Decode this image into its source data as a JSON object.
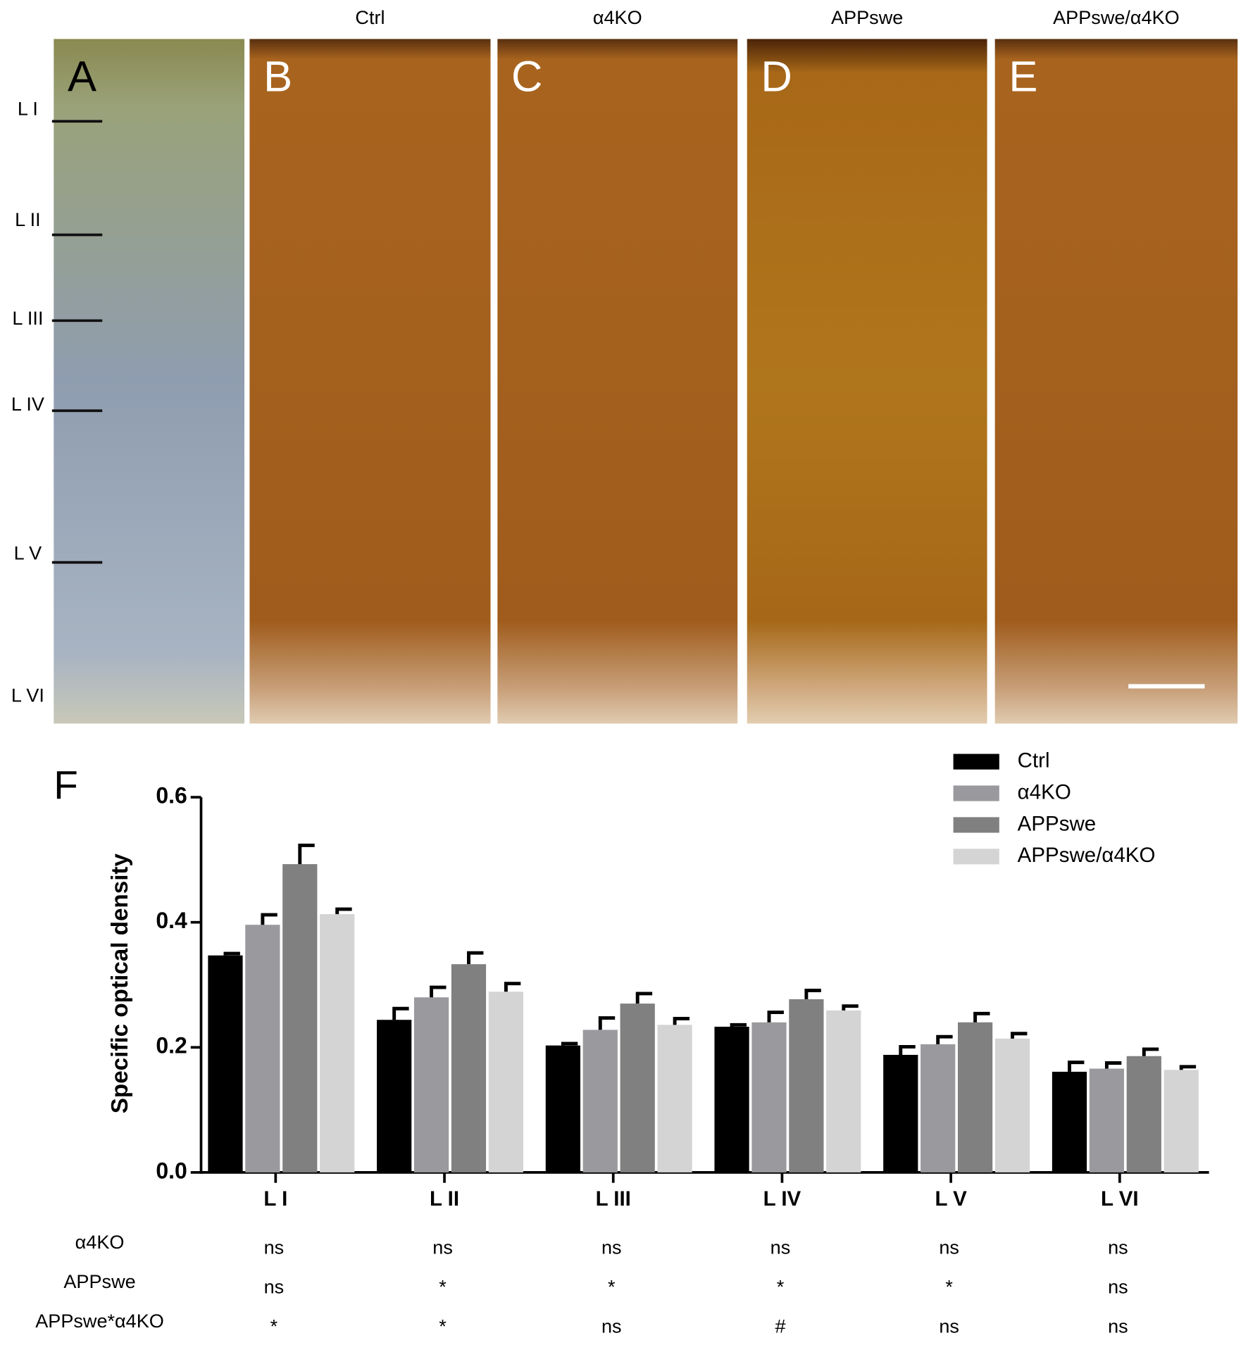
{
  "micrographs": {
    "panels": [
      {
        "letter": "A"
      },
      {
        "letter": "B",
        "title": "Ctrl"
      },
      {
        "letter": "C",
        "title": "α4KO"
      },
      {
        "letter": "D",
        "title": "APPswe"
      },
      {
        "letter": "E",
        "title": "APPswe/α4KO"
      }
    ],
    "layers": [
      "L I",
      "L II",
      "L III",
      "L IV",
      "L V",
      "L VI"
    ]
  },
  "chart_data": {
    "type": "bar",
    "panel_label": "F",
    "y_label": "Specific optical density",
    "categories": [
      "L I",
      "L II",
      "L III",
      "L IV",
      "L V",
      "L VI"
    ],
    "series": [
      {
        "name": "Ctrl",
        "color": "#000000",
        "values": [
          0.347,
          0.244,
          0.203,
          0.233,
          0.188,
          0.161
        ],
        "errors": [
          0.003,
          0.018,
          0.003,
          0.003,
          0.013,
          0.015
        ]
      },
      {
        "name": "α4KO",
        "color": "#9a9a9e",
        "values": [
          0.396,
          0.28,
          0.228,
          0.24,
          0.205,
          0.166
        ],
        "errors": [
          0.016,
          0.016,
          0.019,
          0.016,
          0.012,
          0.009
        ]
      },
      {
        "name": "APPswe",
        "color": "#808080",
        "values": [
          0.493,
          0.333,
          0.27,
          0.277,
          0.24,
          0.186
        ],
        "errors": [
          0.03,
          0.018,
          0.016,
          0.014,
          0.014,
          0.011
        ]
      },
      {
        "name": "APPswe/α4KO",
        "color": "#d4d4d4",
        "values": [
          0.413,
          0.289,
          0.236,
          0.259,
          0.214,
          0.164
        ],
        "errors": [
          0.008,
          0.013,
          0.01,
          0.007,
          0.008,
          0.005
        ]
      }
    ],
    "ylim": [
      0,
      0.6
    ],
    "yticks": [
      {
        "value": 0,
        "label": "0.0"
      },
      0.2,
      0.4,
      0.6
    ],
    "legend": "top-right",
    "stats_table": [
      {
        "label": "α4KO",
        "values": [
          "ns",
          "ns",
          "ns",
          "ns",
          "ns",
          "ns"
        ]
      },
      {
        "label": "APPswe",
        "values": [
          "ns",
          "*",
          "*",
          "*",
          "*",
          "ns"
        ]
      },
      {
        "label": "APPswe*α4KO",
        "values": [
          "*",
          "*",
          "ns",
          "#",
          "ns",
          "ns"
        ]
      }
    ]
  }
}
